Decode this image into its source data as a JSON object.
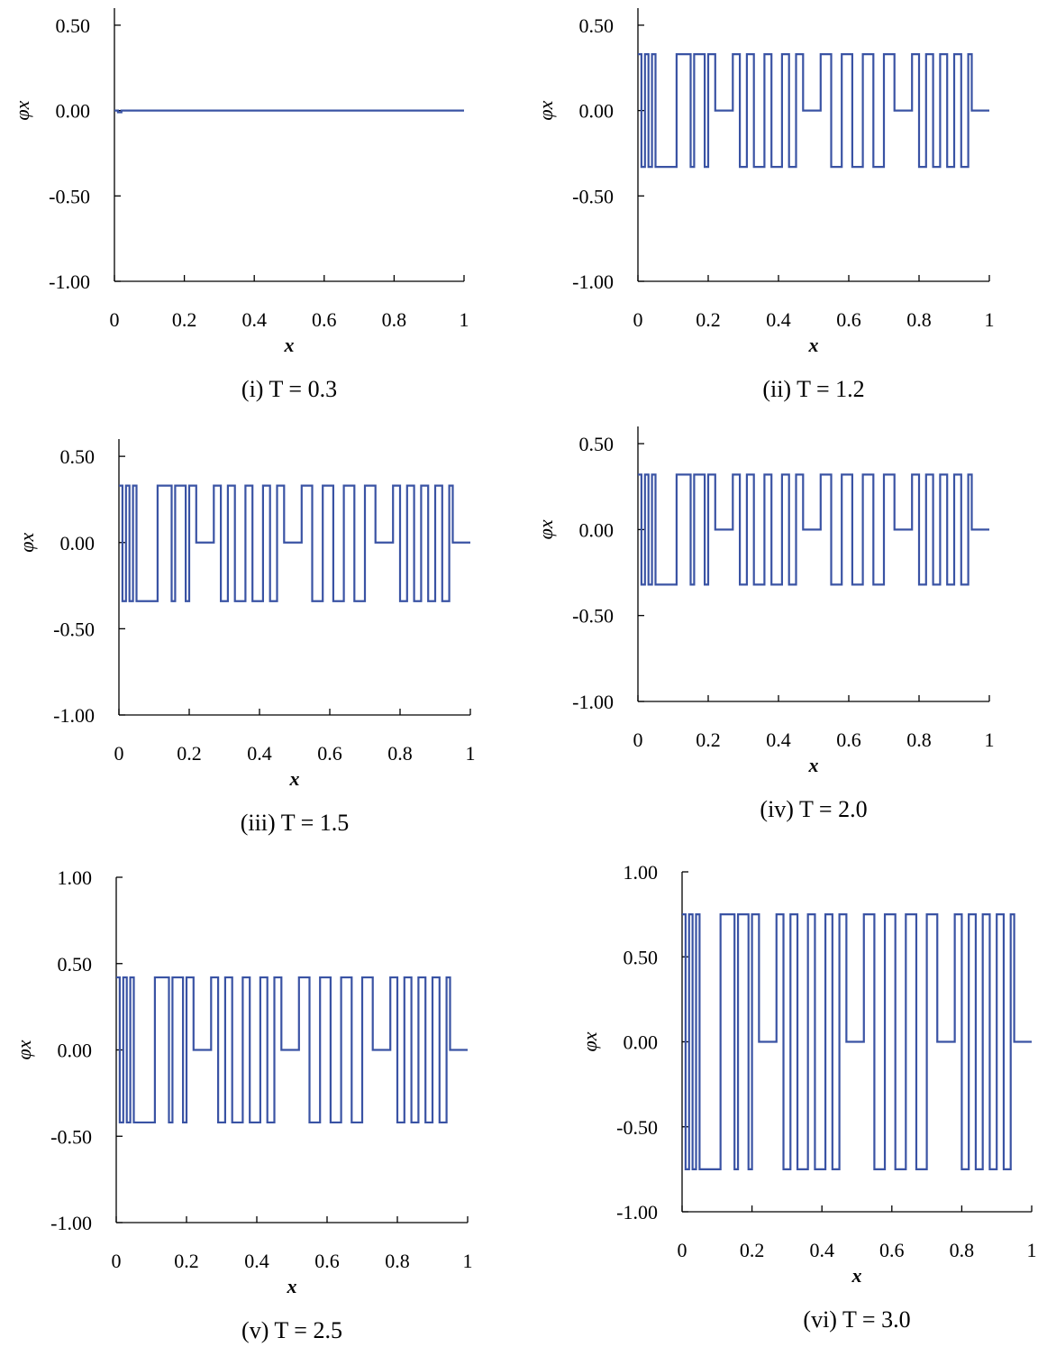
{
  "chart_data": [
    {
      "type": "line",
      "caption": "(i)  T = 0.3",
      "xlabel": "x",
      "ylabel": "φx",
      "color": "#3a53a4",
      "xlim": [
        0,
        1
      ],
      "ylim": [
        -1,
        0.6
      ],
      "xticks": [
        0,
        0.2,
        0.4,
        0.6,
        0.8,
        1
      ],
      "yticks": [
        {
          "value": -1,
          "label": "-1.00"
        },
        {
          "value": -0.5,
          "label": "-0.50"
        },
        {
          "value": 0,
          "label": "0.00"
        },
        {
          "value": 0.5,
          "label": "0.50"
        }
      ],
      "x": [
        0,
        0.01,
        0.01,
        0.02,
        0.02,
        1
      ],
      "y": [
        0,
        0,
        -0.01,
        -0.01,
        0,
        0
      ]
    },
    {
      "type": "line",
      "caption": "(ii)  T = 1.2",
      "xlabel": "x",
      "ylabel": "φx",
      "color": "#3a53a4",
      "xlim": [
        0,
        1
      ],
      "ylim": [
        -1,
        0.6
      ],
      "xticks": [
        0,
        0.2,
        0.4,
        0.6,
        0.8,
        1
      ],
      "yticks": [
        {
          "value": -1,
          "label": "-1.00"
        },
        {
          "value": -0.5,
          "label": "-0.50"
        },
        {
          "value": 0,
          "label": "0.00"
        },
        {
          "value": 0.5,
          "label": "0.50"
        }
      ],
      "x": [
        0,
        0.01,
        0.01,
        0.02,
        0.02,
        0.03,
        0.03,
        0.04,
        0.04,
        0.05,
        0.05,
        0.11,
        0.11,
        0.15,
        0.15,
        0.16,
        0.16,
        0.19,
        0.19,
        0.2,
        0.2,
        0.22,
        0.22,
        0.27,
        0.27,
        0.29,
        0.29,
        0.31,
        0.31,
        0.33,
        0.33,
        0.36,
        0.36,
        0.38,
        0.38,
        0.41,
        0.41,
        0.43,
        0.43,
        0.45,
        0.45,
        0.47,
        0.47,
        0.52,
        0.52,
        0.55,
        0.55,
        0.58,
        0.58,
        0.61,
        0.61,
        0.64,
        0.64,
        0.67,
        0.67,
        0.7,
        0.7,
        0.73,
        0.73,
        0.78,
        0.78,
        0.8,
        0.8,
        0.82,
        0.82,
        0.84,
        0.84,
        0.86,
        0.86,
        0.88,
        0.88,
        0.9,
        0.9,
        0.92,
        0.92,
        0.94,
        0.94,
        0.95,
        0.95,
        1
      ],
      "y": [
        0.33,
        0.33,
        -0.33,
        -0.33,
        0.33,
        0.33,
        -0.33,
        -0.33,
        0.33,
        0.33,
        -0.33,
        -0.33,
        0.33,
        0.33,
        -0.33,
        -0.33,
        0.33,
        0.33,
        -0.33,
        -0.33,
        0.33,
        0.33,
        0,
        0,
        0.33,
        0.33,
        -0.33,
        -0.33,
        0.33,
        0.33,
        -0.33,
        -0.33,
        0.33,
        0.33,
        -0.33,
        -0.33,
        0.33,
        0.33,
        -0.33,
        -0.33,
        0.33,
        0.33,
        0,
        0,
        0.33,
        0.33,
        -0.33,
        -0.33,
        0.33,
        0.33,
        -0.33,
        -0.33,
        0.33,
        0.33,
        -0.33,
        -0.33,
        0.33,
        0.33,
        0,
        0,
        0.33,
        0.33,
        -0.33,
        -0.33,
        0.33,
        0.33,
        -0.33,
        -0.33,
        0.33,
        0.33,
        -0.33,
        -0.33,
        0.33,
        0.33,
        -0.33,
        -0.33,
        0.33,
        0.33,
        0,
        0
      ]
    },
    {
      "type": "line",
      "caption": "(iii)  T = 1.5",
      "xlabel": "x",
      "ylabel": "φx",
      "color": "#3a53a4",
      "xlim": [
        0,
        1
      ],
      "ylim": [
        -1,
        0.6
      ],
      "xticks": [
        0,
        0.2,
        0.4,
        0.6,
        0.8,
        1
      ],
      "yticks": [
        {
          "value": -1,
          "label": "-1.00"
        },
        {
          "value": -0.5,
          "label": "-0.50"
        },
        {
          "value": 0,
          "label": "0.00"
        },
        {
          "value": 0.5,
          "label": "0.50"
        }
      ],
      "x": [
        0,
        0.01,
        0.01,
        0.02,
        0.02,
        0.03,
        0.03,
        0.04,
        0.04,
        0.05,
        0.05,
        0.11,
        0.11,
        0.15,
        0.15,
        0.16,
        0.16,
        0.19,
        0.19,
        0.2,
        0.2,
        0.22,
        0.22,
        0.27,
        0.27,
        0.29,
        0.29,
        0.31,
        0.31,
        0.33,
        0.33,
        0.36,
        0.36,
        0.38,
        0.38,
        0.41,
        0.41,
        0.43,
        0.43,
        0.45,
        0.45,
        0.47,
        0.47,
        0.52,
        0.52,
        0.55,
        0.55,
        0.58,
        0.58,
        0.61,
        0.61,
        0.64,
        0.64,
        0.67,
        0.67,
        0.7,
        0.7,
        0.73,
        0.73,
        0.78,
        0.78,
        0.8,
        0.8,
        0.82,
        0.82,
        0.84,
        0.84,
        0.86,
        0.86,
        0.88,
        0.88,
        0.9,
        0.9,
        0.92,
        0.92,
        0.94,
        0.94,
        0.95,
        0.95,
        1
      ],
      "y": [
        0.33,
        0.33,
        -0.34,
        -0.34,
        0.33,
        0.33,
        -0.34,
        -0.34,
        0.33,
        0.33,
        -0.34,
        -0.34,
        0.33,
        0.33,
        -0.34,
        -0.34,
        0.33,
        0.33,
        -0.34,
        -0.34,
        0.33,
        0.33,
        0,
        0,
        0.33,
        0.33,
        -0.34,
        -0.34,
        0.33,
        0.33,
        -0.34,
        -0.34,
        0.33,
        0.33,
        -0.34,
        -0.34,
        0.33,
        0.33,
        -0.34,
        -0.34,
        0.33,
        0.33,
        0,
        0,
        0.33,
        0.33,
        -0.34,
        -0.34,
        0.33,
        0.33,
        -0.34,
        -0.34,
        0.33,
        0.33,
        -0.34,
        -0.34,
        0.33,
        0.33,
        0,
        0,
        0.33,
        0.33,
        -0.34,
        -0.34,
        0.33,
        0.33,
        -0.34,
        -0.34,
        0.33,
        0.33,
        -0.34,
        -0.34,
        0.33,
        0.33,
        -0.34,
        -0.34,
        0.33,
        0.33,
        0,
        0
      ]
    },
    {
      "type": "line",
      "caption": "(iv)  T = 2.0",
      "xlabel": "x",
      "ylabel": "φx",
      "color": "#3a53a4",
      "xlim": [
        0,
        1
      ],
      "ylim": [
        -1,
        0.6
      ],
      "xticks": [
        0,
        0.2,
        0.4,
        0.6,
        0.8,
        1
      ],
      "yticks": [
        {
          "value": -1,
          "label": "-1.00"
        },
        {
          "value": -0.5,
          "label": "-0.50"
        },
        {
          "value": 0,
          "label": "0.00"
        },
        {
          "value": 0.5,
          "label": "0.50"
        }
      ],
      "x": [
        0,
        0.01,
        0.01,
        0.02,
        0.02,
        0.03,
        0.03,
        0.04,
        0.04,
        0.05,
        0.05,
        0.11,
        0.11,
        0.15,
        0.15,
        0.16,
        0.16,
        0.19,
        0.19,
        0.2,
        0.2,
        0.22,
        0.22,
        0.27,
        0.27,
        0.29,
        0.29,
        0.31,
        0.31,
        0.33,
        0.33,
        0.36,
        0.36,
        0.38,
        0.38,
        0.41,
        0.41,
        0.43,
        0.43,
        0.45,
        0.45,
        0.47,
        0.47,
        0.52,
        0.52,
        0.55,
        0.55,
        0.58,
        0.58,
        0.61,
        0.61,
        0.64,
        0.64,
        0.67,
        0.67,
        0.7,
        0.7,
        0.73,
        0.73,
        0.78,
        0.78,
        0.8,
        0.8,
        0.82,
        0.82,
        0.84,
        0.84,
        0.86,
        0.86,
        0.88,
        0.88,
        0.9,
        0.9,
        0.92,
        0.92,
        0.94,
        0.94,
        0.95,
        0.95,
        1
      ],
      "y": [
        0.32,
        0.32,
        -0.32,
        -0.32,
        0.32,
        0.32,
        -0.32,
        -0.32,
        0.32,
        0.32,
        -0.32,
        -0.32,
        0.32,
        0.32,
        -0.32,
        -0.32,
        0.32,
        0.32,
        -0.32,
        -0.32,
        0.32,
        0.32,
        0,
        0,
        0.32,
        0.32,
        -0.32,
        -0.32,
        0.32,
        0.32,
        -0.32,
        -0.32,
        0.32,
        0.32,
        -0.32,
        -0.32,
        0.32,
        0.32,
        -0.32,
        -0.32,
        0.32,
        0.32,
        0,
        0,
        0.32,
        0.32,
        -0.32,
        -0.32,
        0.32,
        0.32,
        -0.32,
        -0.32,
        0.32,
        0.32,
        -0.32,
        -0.32,
        0.32,
        0.32,
        0,
        0,
        0.32,
        0.32,
        -0.32,
        -0.32,
        0.32,
        0.32,
        -0.32,
        -0.32,
        0.32,
        0.32,
        -0.32,
        -0.32,
        0.32,
        0.32,
        -0.32,
        -0.32,
        0.32,
        0.32,
        0,
        0
      ]
    },
    {
      "type": "line",
      "caption": "(v)  T = 2.5",
      "xlabel": "x",
      "ylabel": "φx",
      "color": "#3a53a4",
      "xlim": [
        0,
        1
      ],
      "ylim": [
        -1,
        1
      ],
      "xticks": [
        0,
        0.2,
        0.4,
        0.6,
        0.8,
        1
      ],
      "yticks": [
        {
          "value": -1,
          "label": "-1.00"
        },
        {
          "value": -0.5,
          "label": "-0.50"
        },
        {
          "value": 0,
          "label": "0.00"
        },
        {
          "value": 0.5,
          "label": "0.50"
        },
        {
          "value": 1,
          "label": "1.00"
        }
      ],
      "x": [
        0,
        0.01,
        0.01,
        0.02,
        0.02,
        0.03,
        0.03,
        0.04,
        0.04,
        0.05,
        0.05,
        0.11,
        0.11,
        0.15,
        0.15,
        0.16,
        0.16,
        0.19,
        0.19,
        0.2,
        0.2,
        0.22,
        0.22,
        0.27,
        0.27,
        0.29,
        0.29,
        0.31,
        0.31,
        0.33,
        0.33,
        0.36,
        0.36,
        0.38,
        0.38,
        0.41,
        0.41,
        0.43,
        0.43,
        0.45,
        0.45,
        0.47,
        0.47,
        0.52,
        0.52,
        0.55,
        0.55,
        0.58,
        0.58,
        0.61,
        0.61,
        0.64,
        0.64,
        0.67,
        0.67,
        0.7,
        0.7,
        0.73,
        0.73,
        0.78,
        0.78,
        0.8,
        0.8,
        0.82,
        0.82,
        0.84,
        0.84,
        0.86,
        0.86,
        0.88,
        0.88,
        0.9,
        0.9,
        0.92,
        0.92,
        0.94,
        0.94,
        0.95,
        0.95,
        1
      ],
      "y": [
        0.42,
        0.42,
        -0.42,
        -0.42,
        0.42,
        0.42,
        -0.42,
        -0.42,
        0.42,
        0.42,
        -0.42,
        -0.42,
        0.42,
        0.42,
        -0.42,
        -0.42,
        0.42,
        0.42,
        -0.42,
        -0.42,
        0.42,
        0.42,
        0,
        0,
        0.42,
        0.42,
        -0.42,
        -0.42,
        0.42,
        0.42,
        -0.42,
        -0.42,
        0.42,
        0.42,
        -0.42,
        -0.42,
        0.42,
        0.42,
        -0.42,
        -0.42,
        0.42,
        0.42,
        0,
        0,
        0.42,
        0.42,
        -0.42,
        -0.42,
        0.42,
        0.42,
        -0.42,
        -0.42,
        0.42,
        0.42,
        -0.42,
        -0.42,
        0.42,
        0.42,
        0,
        0,
        0.42,
        0.42,
        -0.42,
        -0.42,
        0.42,
        0.42,
        -0.42,
        -0.42,
        0.42,
        0.42,
        -0.42,
        -0.42,
        0.42,
        0.42,
        -0.42,
        -0.42,
        0.42,
        0.42,
        0,
        0
      ]
    },
    {
      "type": "line",
      "caption": "(vi)  T = 3.0",
      "xlabel": "x",
      "ylabel": "φx",
      "color": "#3a53a4",
      "xlim": [
        0,
        1
      ],
      "ylim": [
        -1,
        1
      ],
      "xticks": [
        0,
        0.2,
        0.4,
        0.6,
        0.8,
        1
      ],
      "yticks": [
        {
          "value": -1,
          "label": "-1.00"
        },
        {
          "value": -0.5,
          "label": "-0.50"
        },
        {
          "value": 0,
          "label": "0.00"
        },
        {
          "value": 0.5,
          "label": "0.50"
        },
        {
          "value": 1,
          "label": "1.00"
        }
      ],
      "x": [
        0,
        0.01,
        0.01,
        0.02,
        0.02,
        0.03,
        0.03,
        0.04,
        0.04,
        0.05,
        0.05,
        0.11,
        0.11,
        0.15,
        0.15,
        0.16,
        0.16,
        0.19,
        0.19,
        0.2,
        0.2,
        0.22,
        0.22,
        0.27,
        0.27,
        0.29,
        0.29,
        0.31,
        0.31,
        0.33,
        0.33,
        0.36,
        0.36,
        0.38,
        0.38,
        0.41,
        0.41,
        0.43,
        0.43,
        0.45,
        0.45,
        0.47,
        0.47,
        0.52,
        0.52,
        0.55,
        0.55,
        0.58,
        0.58,
        0.61,
        0.61,
        0.64,
        0.64,
        0.67,
        0.67,
        0.7,
        0.7,
        0.73,
        0.73,
        0.78,
        0.78,
        0.8,
        0.8,
        0.82,
        0.82,
        0.84,
        0.84,
        0.86,
        0.86,
        0.88,
        0.88,
        0.9,
        0.9,
        0.92,
        0.92,
        0.94,
        0.94,
        0.95,
        0.95,
        1
      ],
      "y": [
        0.75,
        0.75,
        -0.75,
        -0.75,
        0.75,
        0.75,
        -0.75,
        -0.75,
        0.75,
        0.75,
        -0.75,
        -0.75,
        0.75,
        0.75,
        -0.75,
        -0.75,
        0.75,
        0.75,
        -0.75,
        -0.75,
        0.75,
        0.75,
        0,
        0,
        0.75,
        0.75,
        -0.75,
        -0.75,
        0.75,
        0.75,
        -0.75,
        -0.75,
        0.75,
        0.75,
        -0.75,
        -0.75,
        0.75,
        0.75,
        -0.75,
        -0.75,
        0.75,
        0.75,
        0,
        0,
        0.75,
        0.75,
        -0.75,
        -0.75,
        0.75,
        0.75,
        -0.75,
        -0.75,
        0.75,
        0.75,
        -0.75,
        -0.75,
        0.75,
        0.75,
        0,
        0,
        0.75,
        0.75,
        -0.75,
        -0.75,
        0.75,
        0.75,
        -0.75,
        -0.75,
        0.75,
        0.75,
        -0.75,
        -0.75,
        0.75,
        0.75,
        -0.75,
        -0.75,
        0.75,
        0.75,
        0,
        0
      ]
    }
  ]
}
